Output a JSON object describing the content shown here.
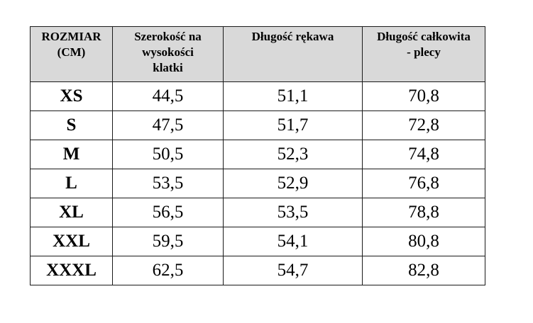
{
  "table": {
    "headers": [
      {
        "lines": [
          "ROZMIAR",
          "(CM)"
        ]
      },
      {
        "lines": [
          "Szerokość na",
          "wysokości",
          "klatki"
        ]
      },
      {
        "lines": [
          "Długość rękawa"
        ]
      },
      {
        "lines": [
          "Długość całkowita",
          "- plecy"
        ]
      }
    ],
    "rows": [
      {
        "size": "XS",
        "chest": "44,5",
        "sleeve": "51,1",
        "length": "70,8"
      },
      {
        "size": "S",
        "chest": "47,5",
        "sleeve": "51,7",
        "length": "72,8"
      },
      {
        "size": "M",
        "chest": "50,5",
        "sleeve": "52,3",
        "length": "74,8"
      },
      {
        "size": "L",
        "chest": "53,5",
        "sleeve": "52,9",
        "length": "76,8"
      },
      {
        "size": "XL",
        "chest": "56,5",
        "sleeve": "53,5",
        "length": "78,8"
      },
      {
        "size": "XXL",
        "chest": "59,5",
        "sleeve": "54,1",
        "length": "80,8"
      },
      {
        "size": "XXXL",
        "chest": "62,5",
        "sleeve": "54,7",
        "length": "82,8"
      }
    ]
  },
  "colors": {
    "header_background": "#d9d9d9",
    "border": "#1a1a1a",
    "text": "#000000"
  }
}
